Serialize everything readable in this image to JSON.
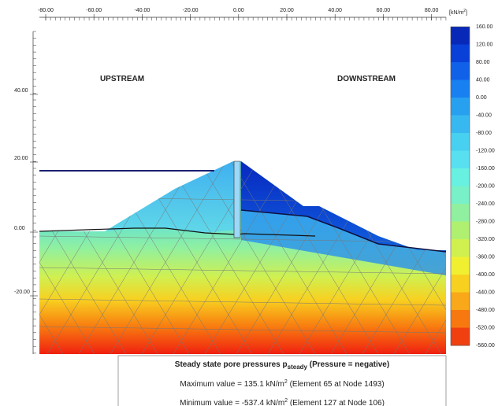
{
  "x_axis": {
    "ticks": [
      "-80.00",
      "-60.00",
      "-40.00",
      "-20.00",
      "0.00",
      "20.00",
      "40.00",
      "60.00",
      "80.00"
    ]
  },
  "y_axis": {
    "ticks": [
      "40.00",
      "20.00",
      "0.00",
      "-20.00"
    ]
  },
  "labels": {
    "upstream": "UPSTREAM",
    "downstream": "DOWNSTREAM"
  },
  "legend": {
    "unit": {
      "text": "[kN/m",
      "sup": "2",
      "suffix": "]"
    },
    "labels": [
      "160.00",
      "120.00",
      "80.00",
      "40.00",
      "0.00",
      "-40.00",
      "-80.00",
      "-120.00",
      "-160.00",
      "-200.00",
      "-240.00",
      "-280.00",
      "-320.00",
      "-360.00",
      "-400.00",
      "-440.00",
      "-480.00",
      "-520.00",
      "-560.00"
    ]
  },
  "info": {
    "title": {
      "text": "Steady state pore pressures p",
      "sub": "steady",
      "suffix": "  (Pressure = negative)"
    },
    "max": {
      "text": "Maximum value = 135.1 kN/m",
      "sup": "2",
      "suffix": " (Element 65 at Node 1493)"
    },
    "min": {
      "text": "Minimum value = -537.4 kN/m",
      "sup": "2",
      "suffix": " (Element 127 at Node 106)"
    }
  }
}
